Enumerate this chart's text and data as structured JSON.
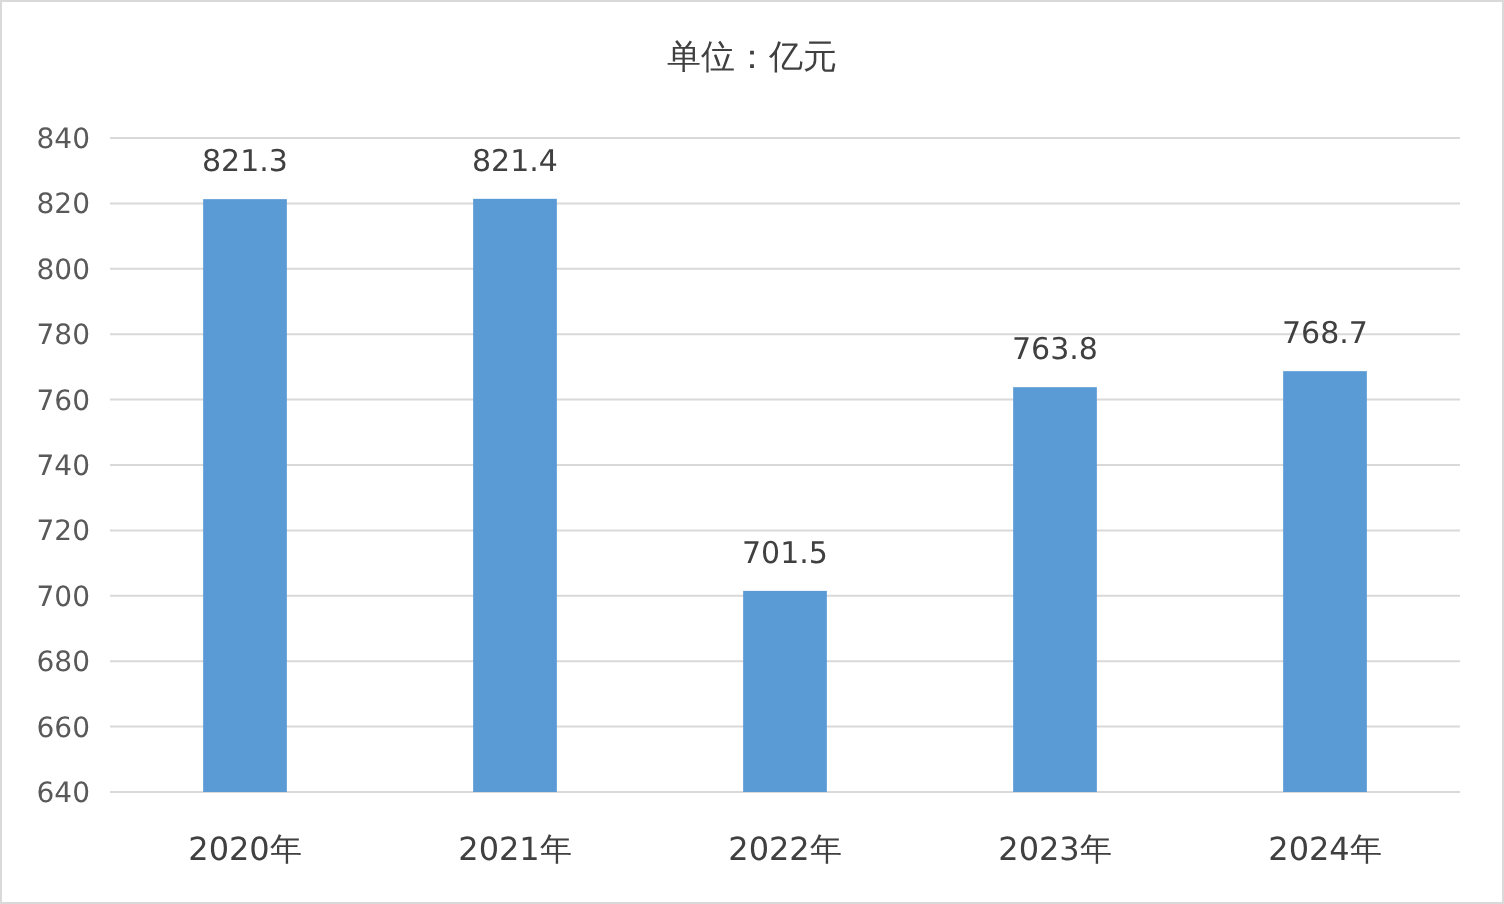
{
  "chart_data": {
    "type": "bar",
    "title": "单位：亿元",
    "categories": [
      "2020年",
      "2021年",
      "2022年",
      "2023年",
      "2024年"
    ],
    "values": [
      821.3,
      821.4,
      701.5,
      763.8,
      768.7
    ],
    "color": "#5b9bd5",
    "ylim": [
      640,
      840
    ],
    "yticks": [
      640,
      660,
      680,
      700,
      720,
      740,
      760,
      780,
      800,
      820,
      840
    ],
    "grid": "y",
    "data_labels": true
  }
}
